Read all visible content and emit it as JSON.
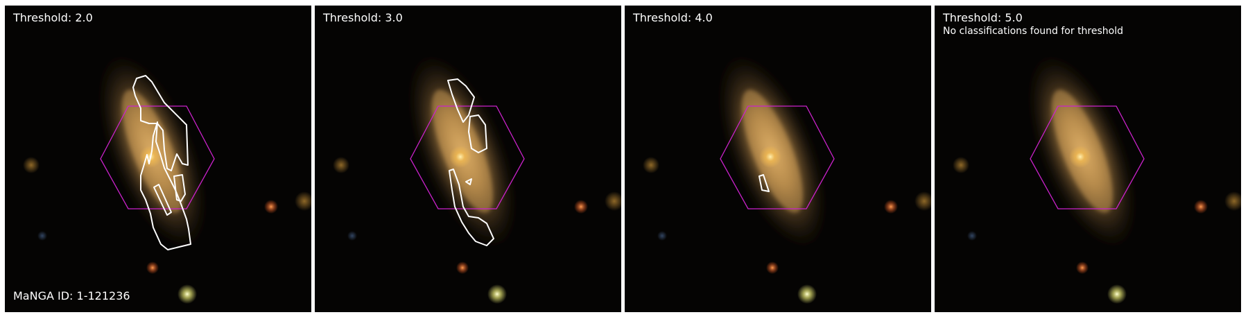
{
  "panels": [
    {
      "threshold_label": "Threshold: 2.0",
      "note": "",
      "manga_id": "MaNGA ID: 1-121236"
    },
    {
      "threshold_label": "Threshold: 3.0",
      "note": "",
      "manga_id": ""
    },
    {
      "threshold_label": "Threshold: 4.0",
      "note": "",
      "manga_id": ""
    },
    {
      "threshold_label": "Threshold: 5.0",
      "note": "No classifications found for threshold",
      "manga_id": ""
    }
  ],
  "colors": {
    "background": "#000000",
    "hexagon": "#cc22cc",
    "contour": "#ffffff",
    "galaxy": "#d8a860",
    "text": "#ffffff"
  }
}
